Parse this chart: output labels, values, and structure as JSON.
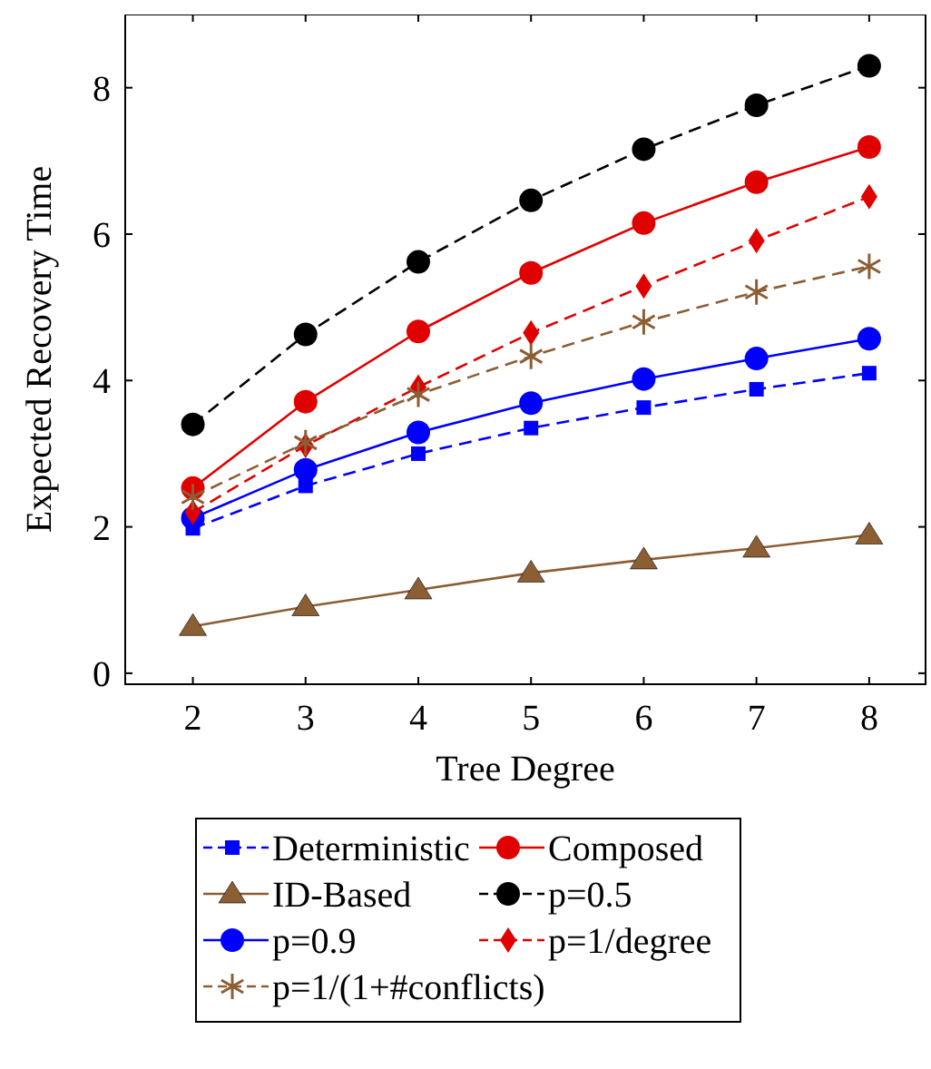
{
  "chart_data": {
    "type": "line",
    "xlabel": "Tree Degree",
    "ylabel": "Expected Recovery Time",
    "x": [
      2,
      3,
      4,
      5,
      6,
      7,
      8
    ],
    "xlim": [
      1.4,
      8.5
    ],
    "xticks": [
      2,
      3,
      4,
      5,
      6,
      7,
      8
    ],
    "ylim": [
      -0.15,
      9
    ],
    "yticks": [
      0,
      2,
      4,
      6,
      8
    ],
    "grid": false,
    "legend": "bottom",
    "series": [
      {
        "name": "Deterministic",
        "color": "#0000ff",
        "marker": "square",
        "line_style": "dashed",
        "values": [
          1.98,
          2.56,
          3.0,
          3.35,
          3.63,
          3.88,
          4.1
        ]
      },
      {
        "name": "Composed",
        "color": "#e00000",
        "marker": "circle",
        "line_style": "solid",
        "values": [
          2.53,
          3.71,
          4.67,
          5.47,
          6.15,
          6.71,
          7.19
        ]
      },
      {
        "name": "ID-Based",
        "color": "#8c5e34",
        "marker": "triangle",
        "line_style": "solid",
        "values": [
          0.64,
          0.91,
          1.14,
          1.37,
          1.55,
          1.71,
          1.89
        ]
      },
      {
        "name": "p=0.5",
        "color": "#000000",
        "marker": "circle",
        "line_style": "dashed",
        "values": [
          3.4,
          4.63,
          5.62,
          6.46,
          7.16,
          7.76,
          8.3
        ]
      },
      {
        "name": "p=0.9",
        "color": "#0000ff",
        "marker": "circle",
        "line_style": "solid",
        "values": [
          2.12,
          2.78,
          3.29,
          3.69,
          4.02,
          4.3,
          4.57
        ]
      },
      {
        "name": "p=1/degree",
        "color": "#e00000",
        "marker": "diamond",
        "line_style": "dashed",
        "values": [
          2.2,
          3.11,
          3.91,
          4.65,
          5.29,
          5.91,
          6.51
        ]
      },
      {
        "name": "p=1/(1+#conflicts)",
        "color": "#8c5e34",
        "marker": "cross",
        "line_style": "dashed",
        "values": [
          2.41,
          3.15,
          3.81,
          4.33,
          4.8,
          5.21,
          5.56
        ]
      }
    ]
  }
}
